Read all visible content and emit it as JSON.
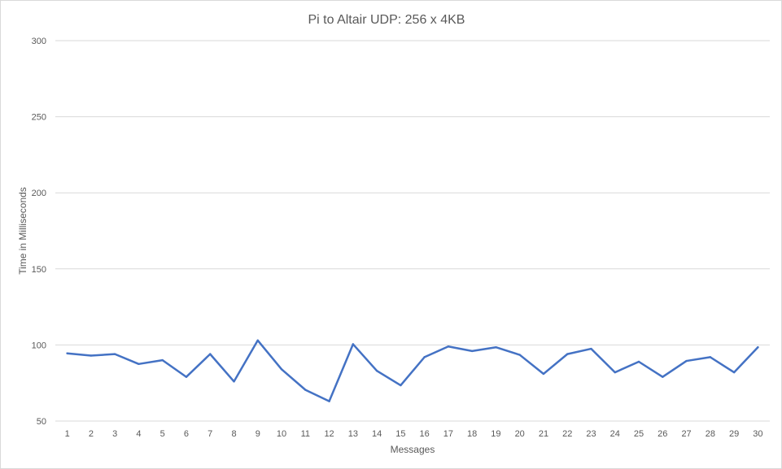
{
  "chart_data": {
    "type": "line",
    "title": "Pi to Altair UDP: 256 x 4KB",
    "xlabel": "Messages",
    "ylabel": "Time in Milliseconds",
    "ylim": [
      50,
      300
    ],
    "yticks": [
      50,
      100,
      150,
      200,
      250,
      300
    ],
    "grid": true,
    "legend": "none",
    "x": [
      1,
      2,
      3,
      4,
      5,
      6,
      7,
      8,
      9,
      10,
      11,
      12,
      13,
      14,
      15,
      16,
      17,
      18,
      19,
      20,
      21,
      22,
      23,
      24,
      25,
      26,
      27,
      28,
      29,
      30
    ],
    "series": [
      {
        "values": [
          94.5,
          93,
          94,
          87.5,
          90,
          79,
          94,
          76,
          103,
          84,
          70.5,
          63,
          100.5,
          83,
          73.5,
          92,
          99,
          96,
          98.5,
          93.5,
          81,
          94,
          97.5,
          82,
          89,
          79,
          89.5,
          92,
          82,
          98.5
        ],
        "color": "#4472c4"
      }
    ],
    "colors": {
      "grid": "#d9d9d9",
      "text": "#595959"
    }
  }
}
